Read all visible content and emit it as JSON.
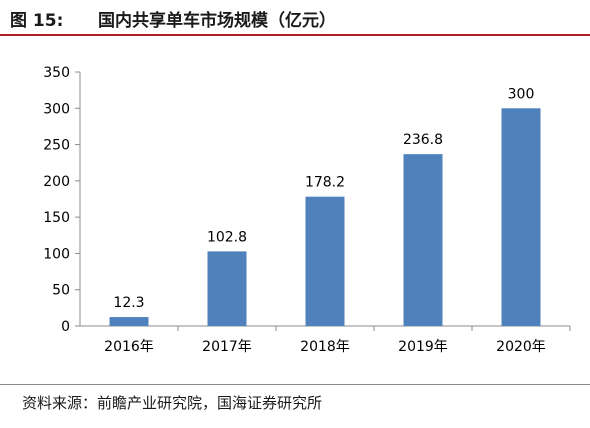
{
  "figure": {
    "label": "图 15:",
    "title": "国内共享单车市场规模（亿元）"
  },
  "source": "资料来源：前瞻产业研究院，国海证券研究所",
  "colors": {
    "bar": "#4f81bd",
    "title_rule": "#b31d26"
  },
  "chart_data": {
    "type": "bar",
    "title": "国内共享单车市场规模（亿元）",
    "categories": [
      "2016年",
      "2017年",
      "2018年",
      "2019年",
      "2020年"
    ],
    "values": [
      12.3,
      102.8,
      178.2,
      236.8,
      300
    ],
    "data_labels": [
      "12.3",
      "102.8",
      "178.2",
      "236.8",
      "300"
    ],
    "ylim": [
      0,
      350
    ],
    "yticks": [
      0,
      50,
      100,
      150,
      200,
      250,
      300,
      350
    ],
    "grid": false,
    "legend": "none"
  }
}
